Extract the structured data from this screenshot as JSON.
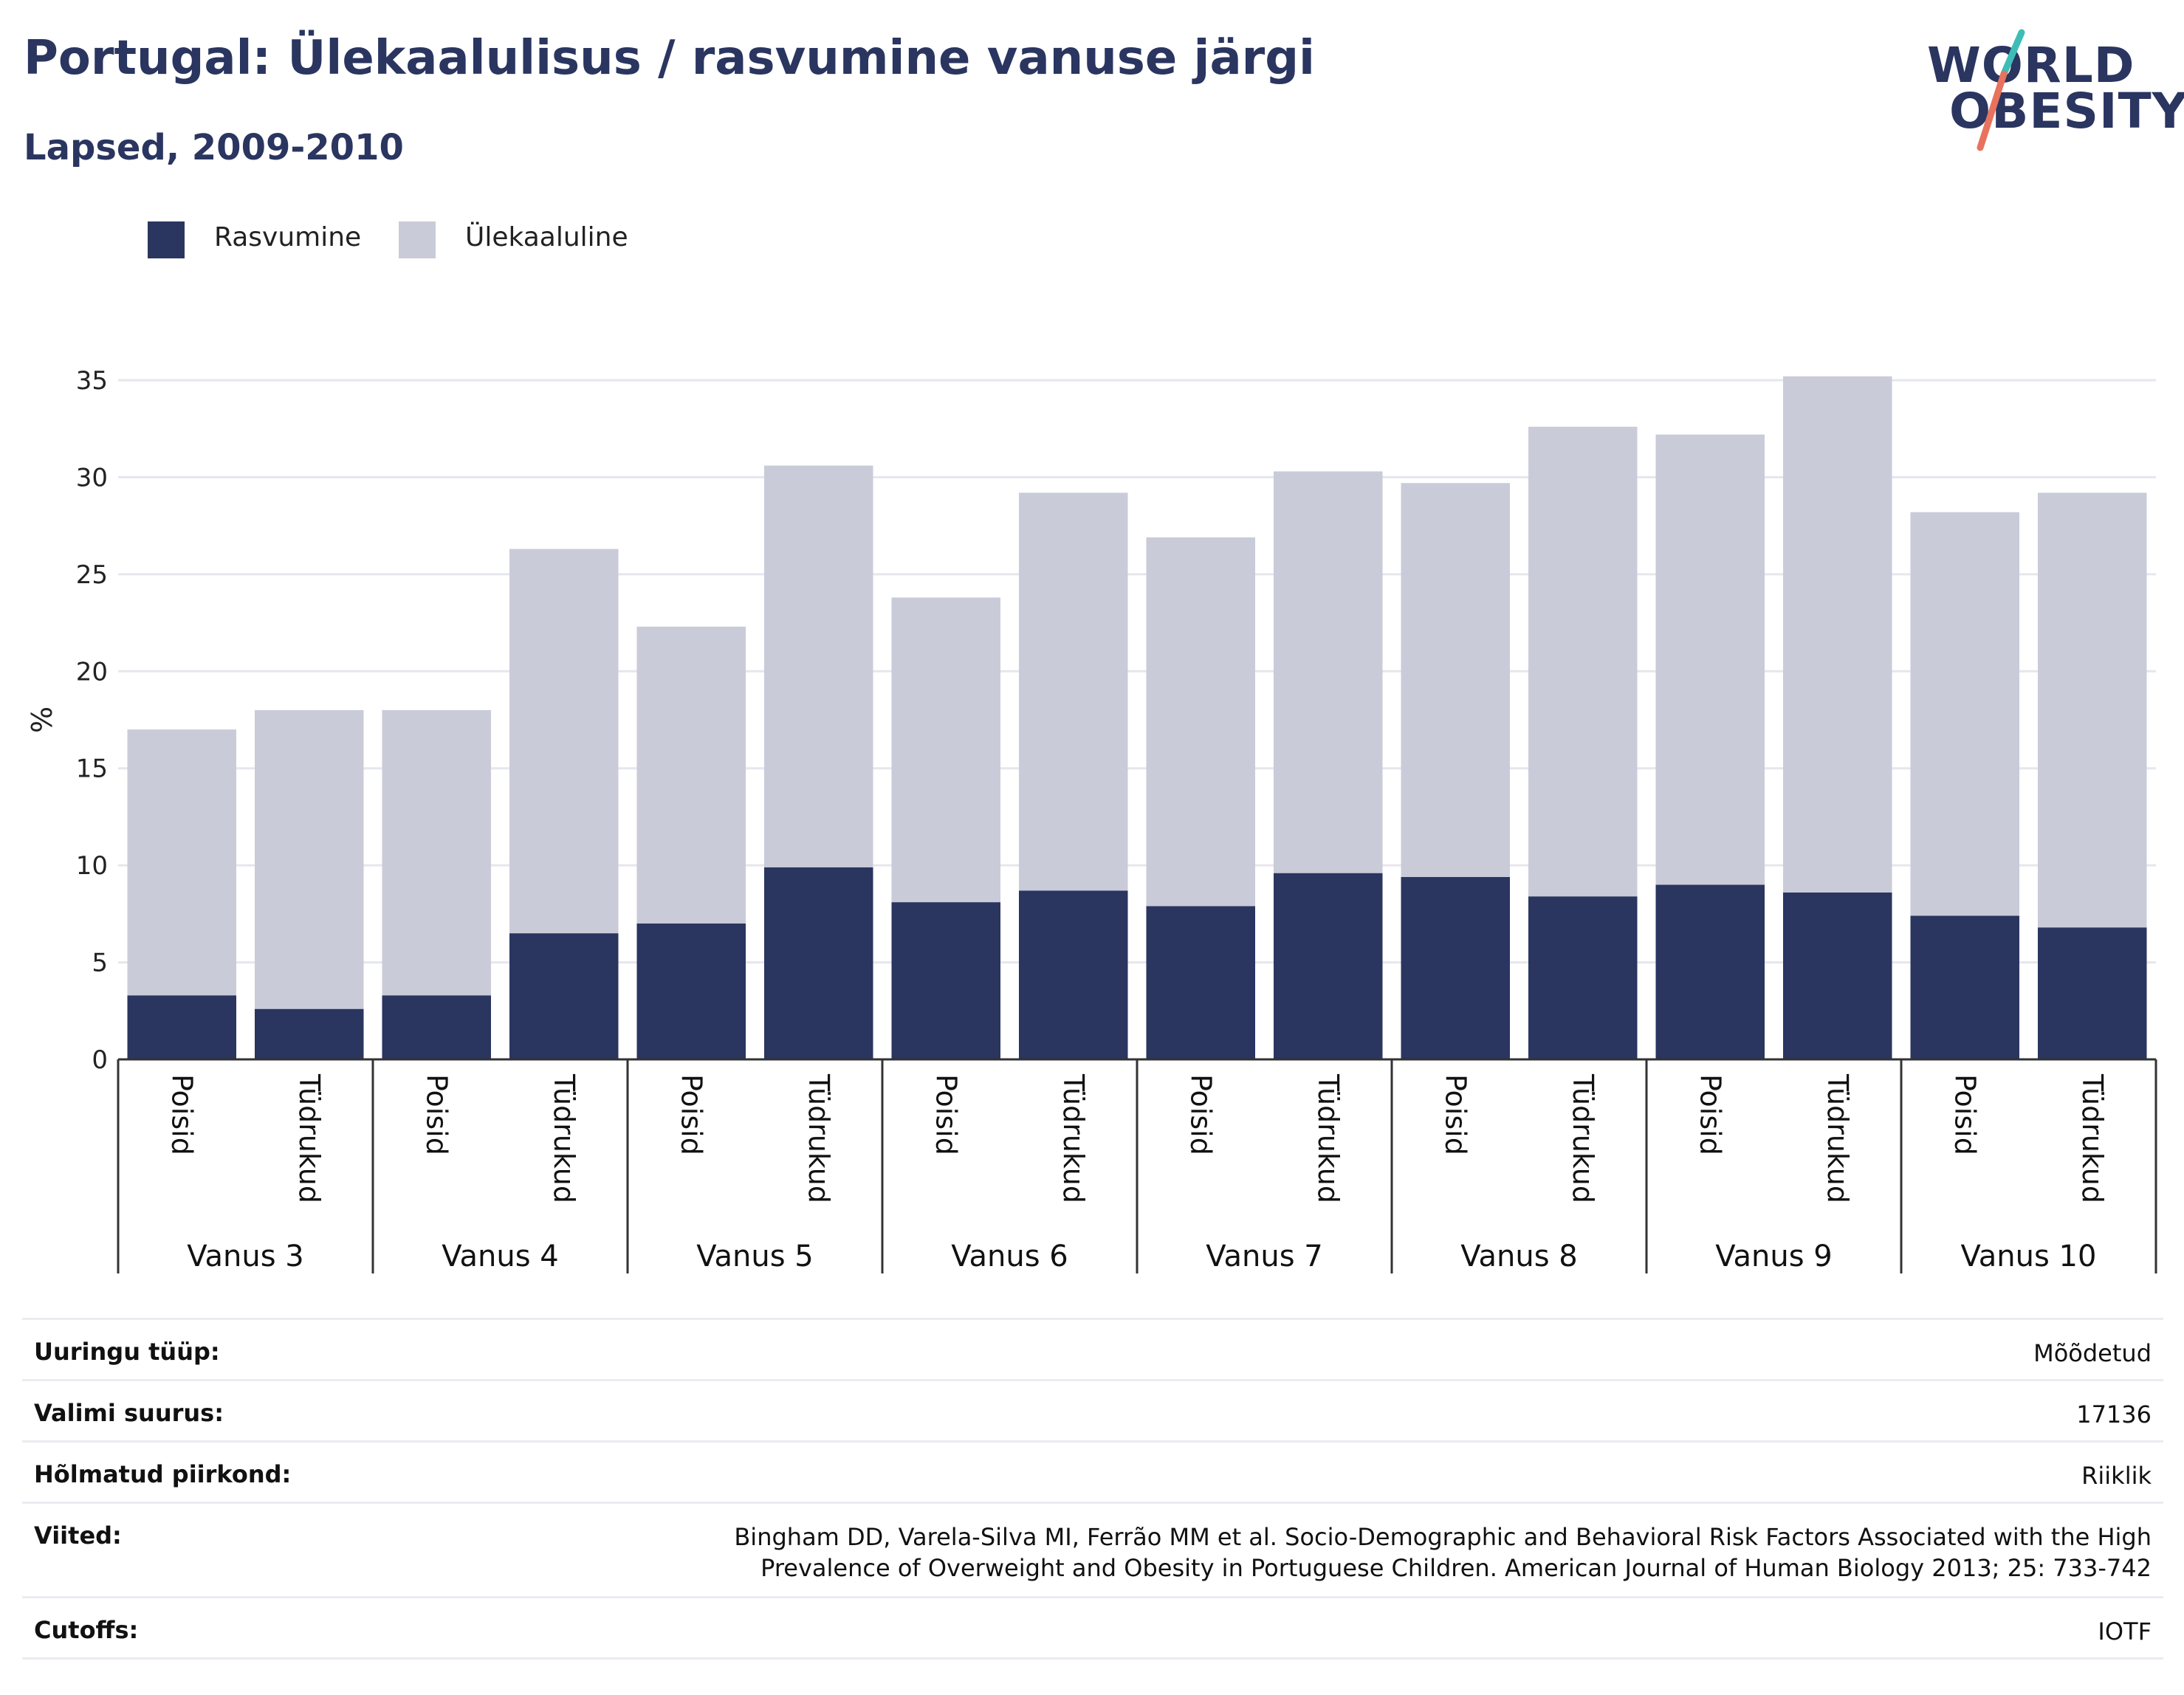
{
  "header": {
    "title": "Portugal: Ülekaalulisus / rasvumine vanuse järgi",
    "subtitle": "Lapsed, 2009-2010"
  },
  "logo": {
    "line1": "WORLD",
    "line2": "OBESITY",
    "colors": {
      "text": "#2a3560",
      "slash_teal": "#3dbdb5",
      "slash_coral": "#e8725e"
    }
  },
  "legend": [
    {
      "label": "Rasvumine",
      "color": "#2a3560"
    },
    {
      "label": "Ülekaaluline",
      "color": "#c9cbd8"
    }
  ],
  "chart_data": {
    "type": "bar",
    "stacked": true,
    "ylabel": "%",
    "ylim": [
      0,
      35
    ],
    "yticks": [
      0,
      5,
      10,
      15,
      20,
      25,
      30,
      35
    ],
    "grid": true,
    "legend_position": "top-left",
    "group_labels": [
      "Vanus 3",
      "Vanus 4",
      "Vanus 5",
      "Vanus 6",
      "Vanus 7",
      "Vanus 8",
      "Vanus 9",
      "Vanus 10"
    ],
    "category_labels": [
      "Poisid",
      "Tüdrukud"
    ],
    "series": [
      {
        "name": "Rasvumine",
        "color": "#2a3560",
        "values": [
          3.3,
          2.6,
          3.3,
          6.5,
          7.0,
          9.9,
          8.1,
          8.7,
          7.9,
          9.6,
          9.4,
          8.4,
          9.0,
          8.6,
          7.4,
          6.8
        ]
      },
      {
        "name": "Ülekaaluline",
        "color": "#c9cbd8",
        "values": [
          13.7,
          15.4,
          14.7,
          19.8,
          15.3,
          20.7,
          15.7,
          20.5,
          19.0,
          20.7,
          20.3,
          24.2,
          23.2,
          26.6,
          20.8,
          22.4
        ]
      }
    ]
  },
  "info": [
    {
      "label": "Uuringu tüüp:",
      "value": "Mõõdetud"
    },
    {
      "label": "Valimi suurus:",
      "value": "17136"
    },
    {
      "label": "Hõlmatud piirkond:",
      "value": "Riiklik"
    },
    {
      "label": "Viited:",
      "value": "Bingham DD, Varela-Silva MI, Ferrão MM et al. Socio-Demographic and Behavioral Risk Factors Associated with the High Prevalence of Overweight and Obesity in Portuguese Children. American Journal of Human Biology 2013; 25: 733-742"
    },
    {
      "label": "Cutoffs:",
      "value": "IOTF"
    }
  ]
}
